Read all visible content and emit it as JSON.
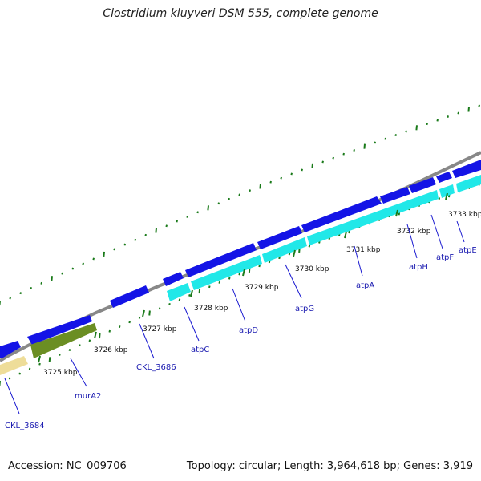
{
  "title": "Clostridium kluyveri DSM 555, complete genome",
  "accession": "Accession: NC_009706",
  "stats": "Topology: circular; Length: 3,964,618 bp; Genes: 3,919",
  "colors": {
    "backbone": "#888888",
    "cds_forward": "#1414e6",
    "cds_cyan": "#21e8e8",
    "cds_olive": "#6b8e23",
    "cds_pale": "#eedd99",
    "gc_dots": "#1a7a1a",
    "label_line": "#1a1ad0"
  },
  "ticks": [
    {
      "label": "3725 kbp"
    },
    {
      "label": "3726 kbp"
    },
    {
      "label": "3727 kbp"
    },
    {
      "label": "3728 kbp"
    },
    {
      "label": "3729 kbp"
    },
    {
      "label": "3730 kbp"
    },
    {
      "label": "3731 kbp"
    },
    {
      "label": "3732 kbp"
    },
    {
      "label": "3733 kbp"
    }
  ],
  "genes": [
    {
      "label": "CKL_3684"
    },
    {
      "label": "murA2"
    },
    {
      "label": "CKL_3686"
    },
    {
      "label": "atpC"
    },
    {
      "label": "atpD"
    },
    {
      "label": "atpG"
    },
    {
      "label": "atpA"
    },
    {
      "label": "atpH"
    },
    {
      "label": "atpF"
    },
    {
      "label": "atpE"
    }
  ]
}
